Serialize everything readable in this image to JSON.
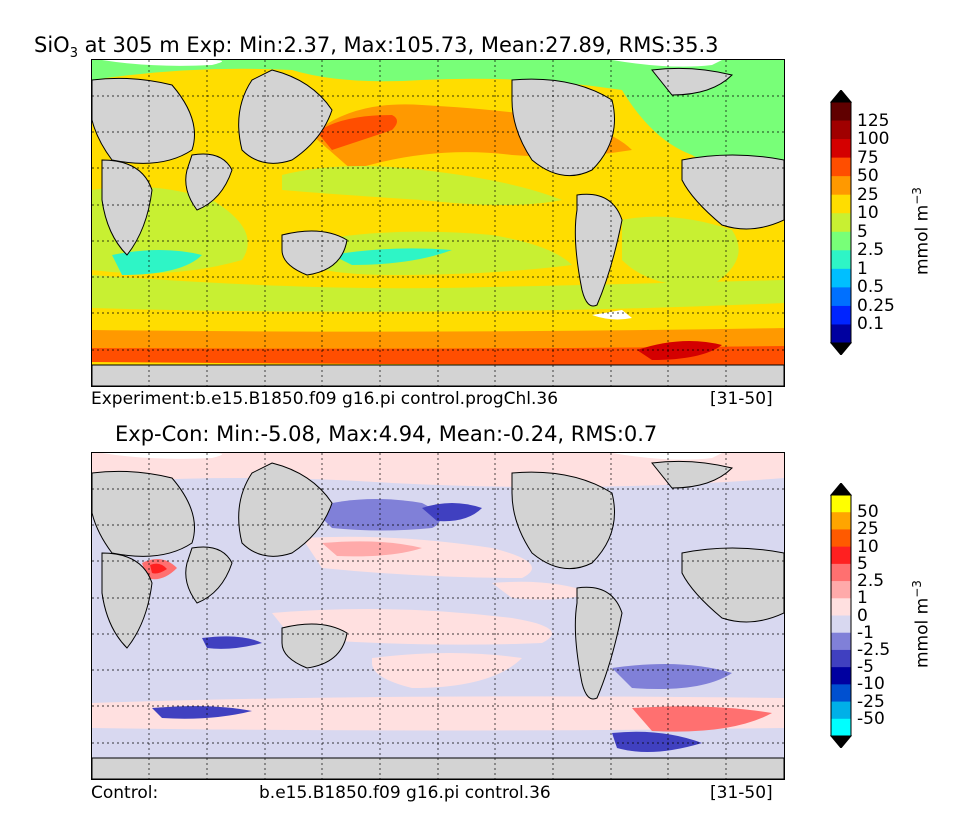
{
  "chart_data": [
    {
      "type": "heatmap",
      "title_species": "SiO",
      "title_sub": "3",
      "title_rest": " at 305 m Exp: Min:2.37, Max:105.73, Mean:27.89, RMS:35.3",
      "colorbar_label": "mmol m",
      "colorbar_exp": "−3",
      "levels": [
        "125",
        "100",
        "75",
        "50",
        "25",
        "10",
        "5",
        "2.5",
        "1",
        "0.5",
        "0.25",
        "0.1"
      ],
      "colors": [
        "#600000",
        "#d40000",
        "#ff4e00",
        "#ff9900",
        "#ffdd00",
        "#c8f032",
        "#78ff78",
        "#2ef5c6",
        "#00bfff",
        "#0070ff",
        "#0024ff",
        "#0000a0"
      ],
      "extend_top_color": "#000000",
      "extend_bottom_color": "#000000",
      "caption_left": "Experiment:b.e15.B1850.f09 g16.pi control.progChl.36",
      "caption_right": "[31-50]",
      "stats": {
        "min": 2.37,
        "max": 105.73,
        "mean": 27.89,
        "rms": 35.3
      },
      "depth": "305 m"
    },
    {
      "type": "heatmap",
      "title": "Exp-Con: Min:-5.08, Max:4.94, Mean:-0.24, RMS:0.7",
      "colorbar_label": "mmol m",
      "colorbar_exp": "−3",
      "levels": [
        "50",
        "25",
        "10",
        "5",
        "2.5",
        "1",
        "0",
        "-1",
        "-2.5",
        "-5",
        "-10",
        "-25",
        "-50"
      ],
      "colors": [
        "#ffff00",
        "#ffa500",
        "#ff5a00",
        "#ff2020",
        "#ff7070",
        "#ffaaaa",
        "#ffe0e0",
        "#d8d8f0",
        "#8080d8",
        "#4040c0",
        "#0000a0",
        "#0050d0",
        "#00b0e8",
        "#00ffff"
      ],
      "caption_left": "Control:",
      "caption_mid": "b.e15.B1850.f09 g16.pi control.36",
      "caption_right": "[31-50]",
      "stats": {
        "min": -5.08,
        "max": 4.94,
        "mean": -0.24,
        "rms": 0.7
      }
    }
  ]
}
